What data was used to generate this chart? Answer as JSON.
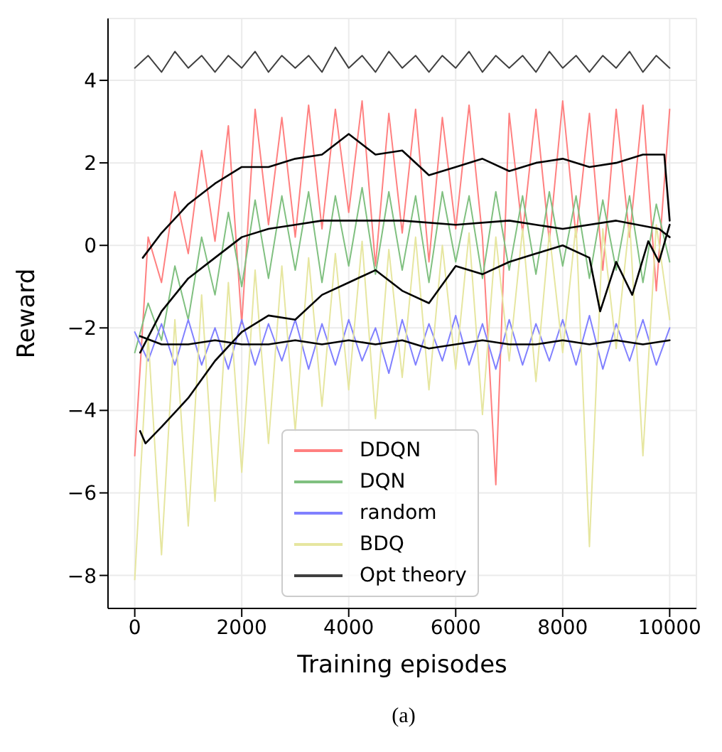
{
  "chart_data": {
    "type": "line",
    "xlabel": "Training episodes",
    "ylabel": "Reward",
    "annotations": [
      "(a)"
    ],
    "x": [
      0,
      250,
      500,
      750,
      1000,
      1250,
      1500,
      1750,
      2000,
      2250,
      2500,
      2750,
      3000,
      3250,
      3500,
      3750,
      4000,
      4250,
      4500,
      4750,
      5000,
      5250,
      5500,
      5750,
      6000,
      6250,
      6500,
      6750,
      7000,
      7250,
      7500,
      7750,
      8000,
      8250,
      8500,
      8750,
      9000,
      9250,
      9500,
      9750,
      10000
    ],
    "series": [
      {
        "name": "DDQN",
        "color": "#ff8080",
        "values": [
          -5.1,
          0.2,
          -0.9,
          1.3,
          -0.2,
          2.3,
          0.1,
          2.9,
          -1.9,
          3.3,
          0.5,
          3.1,
          0.2,
          3.4,
          0.4,
          3.3,
          0.8,
          3.5,
          -0.5,
          3.2,
          0.3,
          3.3,
          -0.4,
          3.1,
          0.4,
          3.4,
          0.2,
          -5.8,
          3.2,
          0.3,
          3.3,
          0.1,
          3.5,
          0.2,
          3.2,
          -0.6,
          3.3,
          0.2,
          3.4,
          -1.1,
          3.3
        ]
      },
      {
        "name": "DQN",
        "color": "#80c080",
        "values": [
          -2.6,
          -1.4,
          -2.3,
          -0.5,
          -1.8,
          0.2,
          -1.2,
          0.8,
          -1.0,
          1.1,
          -0.8,
          1.2,
          -0.6,
          1.3,
          -0.9,
          1.2,
          -0.5,
          1.4,
          -0.7,
          1.3,
          -0.6,
          1.2,
          -0.9,
          1.3,
          -0.4,
          1.2,
          -0.8,
          1.3,
          -0.6,
          1.2,
          -0.7,
          1.3,
          -0.5,
          1.2,
          -0.8,
          1.1,
          -0.6,
          1.2,
          -0.9,
          1.0,
          -0.4
        ]
      },
      {
        "name": "random",
        "color": "#8080ff",
        "values": [
          -2.1,
          -2.8,
          -1.9,
          -2.9,
          -1.8,
          -2.9,
          -2.0,
          -3.0,
          -1.8,
          -2.9,
          -1.9,
          -2.8,
          -1.8,
          -3.0,
          -1.9,
          -2.9,
          -1.8,
          -2.8,
          -2.0,
          -3.1,
          -1.8,
          -2.9,
          -1.9,
          -2.8,
          -1.7,
          -2.9,
          -1.9,
          -3.0,
          -1.8,
          -2.9,
          -1.9,
          -2.8,
          -1.8,
          -2.9,
          -1.7,
          -3.0,
          -1.9,
          -2.8,
          -1.8,
          -2.9,
          -2.0
        ]
      },
      {
        "name": "BDQ",
        "color": "#e6e6a0",
        "values": [
          -8.1,
          -2.2,
          -7.5,
          -1.8,
          -6.8,
          -1.2,
          -6.2,
          -0.9,
          -5.5,
          -0.6,
          -4.8,
          -0.5,
          -4.5,
          -0.3,
          -3.9,
          -0.2,
          -3.5,
          0.1,
          -4.2,
          -0.1,
          -3.2,
          0.2,
          -3.5,
          0.0,
          -3.0,
          0.3,
          -4.1,
          0.2,
          -2.8,
          0.4,
          -3.3,
          0.3,
          -2.6,
          0.5,
          -7.3,
          0.4,
          -2.5,
          0.6,
          -5.1,
          0.5,
          -1.8
        ]
      },
      {
        "name": "Opt theory",
        "color": "#404040",
        "values": [
          4.3,
          4.6,
          4.2,
          4.7,
          4.3,
          4.6,
          4.2,
          4.6,
          4.3,
          4.7,
          4.2,
          4.6,
          4.3,
          4.6,
          4.2,
          4.8,
          4.3,
          4.6,
          4.2,
          4.7,
          4.3,
          4.6,
          4.2,
          4.6,
          4.3,
          4.7,
          4.2,
          4.6,
          4.3,
          4.6,
          4.2,
          4.7,
          4.3,
          4.6,
          4.2,
          4.6,
          4.3,
          4.7,
          4.2,
          4.6,
          4.3
        ]
      },
      {
        "color": "#000000",
        "x": [
          150,
          500,
          1000,
          1500,
          2000,
          2500,
          3000,
          3500,
          4000,
          4500,
          5000,
          5500,
          6000,
          6500,
          7000,
          7500,
          8000,
          8500,
          9000,
          9500,
          9900,
          10000
        ],
        "values": [
          -0.3,
          0.3,
          1.0,
          1.5,
          1.9,
          1.9,
          2.1,
          2.2,
          2.7,
          2.2,
          2.3,
          1.7,
          1.9,
          2.1,
          1.8,
          2.0,
          2.1,
          1.9,
          2.0,
          2.2,
          2.2,
          0.6
        ]
      },
      {
        "color": "#000000",
        "x": [
          100,
          500,
          1000,
          1500,
          2000,
          2500,
          3000,
          3500,
          4000,
          5000,
          6000,
          7000,
          8000,
          9000,
          9800,
          10000
        ],
        "values": [
          -2.6,
          -1.6,
          -0.8,
          -0.3,
          0.2,
          0.4,
          0.5,
          0.6,
          0.6,
          0.6,
          0.5,
          0.6,
          0.4,
          0.6,
          0.4,
          0.2
        ]
      },
      {
        "color": "#000000",
        "x": [
          100,
          200,
          500,
          1000,
          1500,
          2000,
          2500,
          3000,
          3500,
          4000,
          4500,
          5000,
          5500,
          6000,
          6500,
          7000,
          7500,
          8000,
          8500,
          8700,
          9000,
          9300,
          9600,
          9800,
          10000
        ],
        "values": [
          -4.5,
          -4.8,
          -4.4,
          -3.7,
          -2.8,
          -2.1,
          -1.7,
          -1.8,
          -1.2,
          -0.9,
          -0.6,
          -1.1,
          -1.4,
          -0.5,
          -0.7,
          -0.4,
          -0.2,
          0.0,
          -0.3,
          -1.6,
          -0.4,
          -1.2,
          0.1,
          -0.4,
          0.5
        ]
      },
      {
        "color": "#000000",
        "x": [
          100,
          500,
          1000,
          1500,
          2000,
          2500,
          3000,
          3500,
          4000,
          4500,
          5000,
          5500,
          6000,
          6500,
          7000,
          7500,
          8000,
          8500,
          9000,
          9500,
          10000
        ],
        "values": [
          -2.2,
          -2.4,
          -2.4,
          -2.3,
          -2.4,
          -2.4,
          -2.3,
          -2.4,
          -2.3,
          -2.4,
          -2.3,
          -2.5,
          -2.4,
          -2.3,
          -2.4,
          -2.4,
          -2.3,
          -2.4,
          -2.3,
          -2.4,
          -2.3
        ]
      }
    ],
    "xlim": [
      -500,
      10500
    ],
    "xticks": [
      0,
      2000,
      4000,
      6000,
      8000,
      10000
    ],
    "ylim": [
      -8.8,
      5.5
    ],
    "yticks": [
      -8,
      -6,
      -4,
      -2,
      0,
      2,
      4
    ],
    "grid": true,
    "legend": "bottom",
    "marker": "none",
    "line_style": "solid"
  }
}
